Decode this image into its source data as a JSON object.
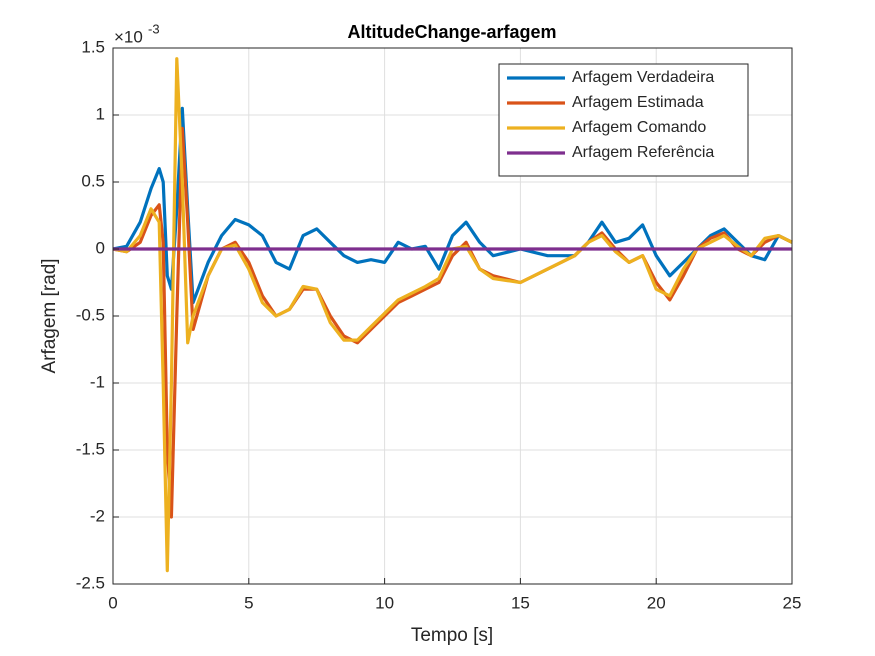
{
  "chart_data": {
    "type": "line",
    "title": "AltitudeChange-arfagem",
    "x_label": "Tempo [s]",
    "y_label": "Arfagem [rad]",
    "y_multiplier": "×10",
    "y_exponent": "-3",
    "x": [
      0,
      0.5,
      1,
      1.4,
      1.7,
      1.85,
      2,
      2.15,
      2.35,
      2.55,
      2.75,
      2.95,
      3.5,
      4,
      4.5,
      5,
      5.5,
      6,
      6.5,
      7,
      7.5,
      8,
      8.5,
      9,
      9.5,
      10,
      10.5,
      11,
      11.5,
      12,
      12.5,
      13,
      13.5,
      14,
      15,
      16,
      17,
      17.5,
      18,
      18.5,
      19,
      19.5,
      20,
      20.5,
      21,
      21.5,
      22,
      22.5,
      23,
      23.5,
      24,
      24.5,
      25
    ],
    "series": [
      {
        "name": "Arfagem Verdadeira",
        "color": "#0072BD",
        "values": [
          0,
          0.02,
          0.2,
          0.45,
          0.6,
          0.5,
          -0.2,
          -0.3,
          0.3,
          1.05,
          0.3,
          -0.4,
          -0.1,
          0.1,
          0.22,
          0.18,
          0.1,
          -0.1,
          -0.15,
          0.1,
          0.15,
          0.05,
          -0.05,
          -0.1,
          -0.08,
          -0.1,
          0.05,
          0,
          0.02,
          -0.15,
          0.1,
          0.2,
          0.05,
          -0.05,
          0,
          -0.05,
          -0.05,
          0.05,
          0.2,
          0.05,
          0.08,
          0.18,
          -0.05,
          -0.2,
          -0.1,
          0,
          0.1,
          0.15,
          0.05,
          -0.05,
          -0.08,
          0.1,
          0.05
        ]
      },
      {
        "name": "Arfagem Estimada",
        "color": "#D95319",
        "values": [
          0,
          -0.02,
          0.05,
          0.25,
          0.33,
          0.05,
          -1.5,
          -2.0,
          -0.5,
          0.9,
          0.2,
          -0.6,
          -0.2,
          0,
          0.05,
          -0.1,
          -0.35,
          -0.5,
          -0.45,
          -0.3,
          -0.3,
          -0.5,
          -0.65,
          -0.7,
          -0.6,
          -0.5,
          -0.4,
          -0.35,
          -0.3,
          -0.25,
          -0.05,
          0.05,
          -0.15,
          -0.2,
          -0.25,
          -0.15,
          -0.05,
          0.05,
          0.12,
          0,
          -0.1,
          -0.05,
          -0.25,
          -0.38,
          -0.2,
          0,
          0.08,
          0.12,
          0,
          -0.05,
          0.05,
          0.1,
          0.05
        ]
      },
      {
        "name": "Arfagem Comando",
        "color": "#EDB120",
        "values": [
          0,
          -0.02,
          0.1,
          0.3,
          0.2,
          -1.0,
          -2.4,
          -1.0,
          1.42,
          0.5,
          -0.7,
          -0.5,
          -0.2,
          0,
          0.03,
          -0.15,
          -0.4,
          -0.5,
          -0.45,
          -0.28,
          -0.3,
          -0.55,
          -0.68,
          -0.68,
          -0.58,
          -0.48,
          -0.38,
          -0.33,
          -0.28,
          -0.22,
          0,
          0.02,
          -0.15,
          -0.22,
          -0.25,
          -0.15,
          -0.05,
          0.05,
          0.1,
          -0.02,
          -0.1,
          -0.05,
          -0.3,
          -0.35,
          -0.15,
          0,
          0.05,
          0.1,
          0.02,
          -0.05,
          0.08,
          0.1,
          0.05
        ]
      },
      {
        "name": "Arfagem Referência",
        "color": "#7E2F8E",
        "x": [
          0,
          25
        ],
        "values": [
          0,
          0
        ]
      }
    ],
    "xlim": [
      0,
      25
    ],
    "ylim": [
      -2.5,
      1.5
    ],
    "xticks": [
      0,
      5,
      10,
      15,
      20,
      25
    ],
    "yticks": [
      -2.5,
      -2,
      -1.5,
      -1,
      -0.5,
      0,
      0.5,
      1,
      1.5
    ],
    "grid": true,
    "legend": "northeast"
  }
}
